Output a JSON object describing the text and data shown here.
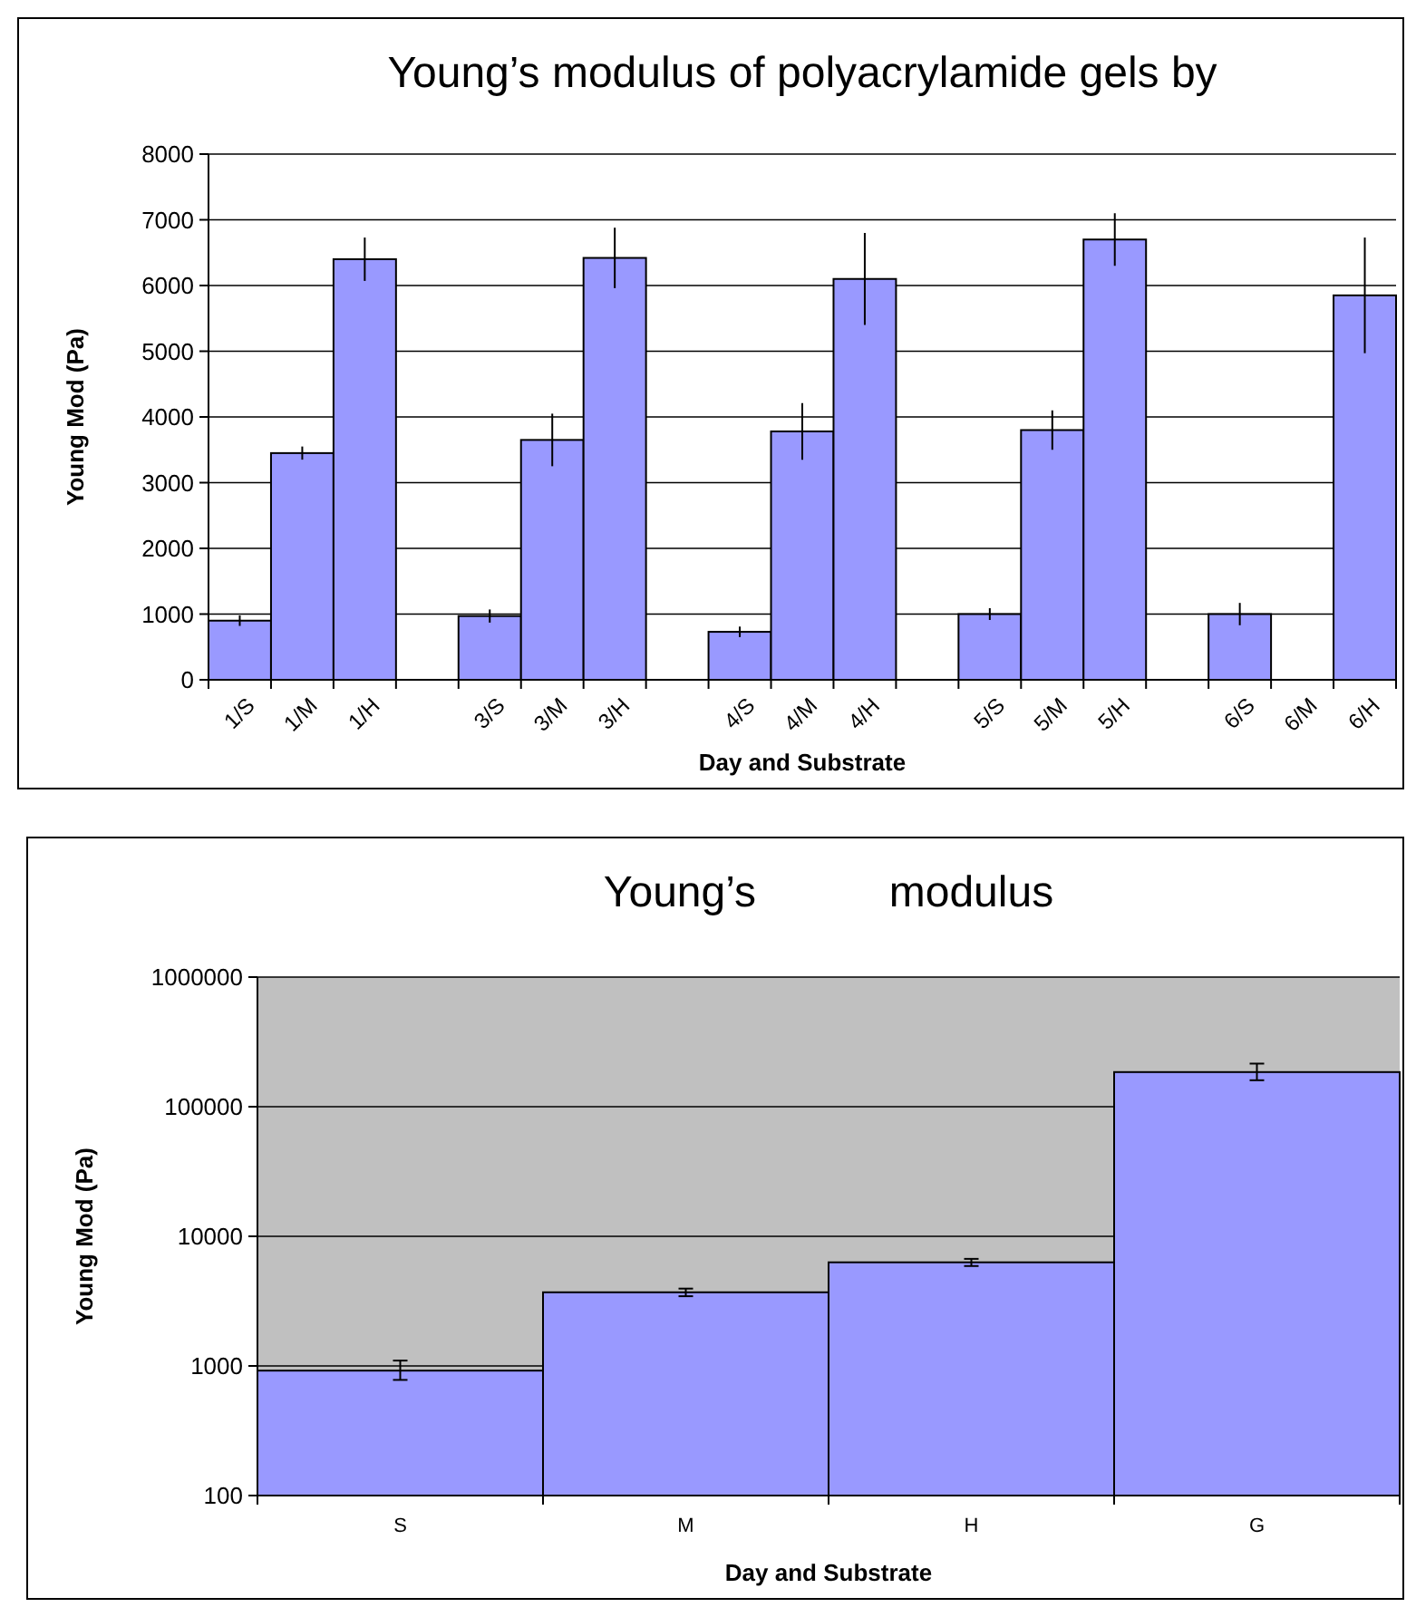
{
  "chart_data": [
    {
      "type": "bar",
      "title": "Young’s modulus of polyacrylamide gels by",
      "xlabel": "Day and Substrate",
      "ylabel": "Young Mod (Pa)",
      "categories": [
        "1/S",
        "1/M",
        "1/H",
        null,
        "3/S",
        "3/M",
        "3/H",
        null,
        "4/S",
        "4/M",
        "4/H",
        null,
        "5/S",
        "5/M",
        "5/H",
        null,
        "6/S",
        "6/M",
        "6/H"
      ],
      "values": [
        900,
        3450,
        6400,
        null,
        970,
        3650,
        6420,
        null,
        730,
        3780,
        6100,
        null,
        1000,
        3800,
        6700,
        null,
        1000,
        null,
        5850
      ],
      "errors": [
        80,
        100,
        330,
        null,
        100,
        400,
        460,
        null,
        80,
        430,
        700,
        null,
        90,
        300,
        400,
        null,
        170,
        null,
        880
      ],
      "color": "#9999ff",
      "ylim": [
        0,
        8000
      ],
      "yticks": [
        0,
        1000,
        2000,
        3000,
        4000,
        5000,
        6000,
        7000,
        8000
      ],
      "grid": "y"
    },
    {
      "type": "bar",
      "title": "Young’s           modulus",
      "xlabel": "Day and Substrate",
      "ylabel": "Young Mod (Pa)",
      "categories": [
        "S",
        "M",
        "H",
        "G"
      ],
      "values": [
        920,
        3700,
        6300,
        185000
      ],
      "errors": [
        [
          780,
          1100
        ],
        [
          3450,
          3950
        ],
        [
          5900,
          6700
        ],
        [
          160000,
          215000
        ]
      ],
      "color": "#9999ff",
      "log": true,
      "ylim": [
        100,
        1000000
      ],
      "yticks": [
        100,
        1000,
        10000,
        100000,
        1000000
      ],
      "grid": "y"
    }
  ]
}
